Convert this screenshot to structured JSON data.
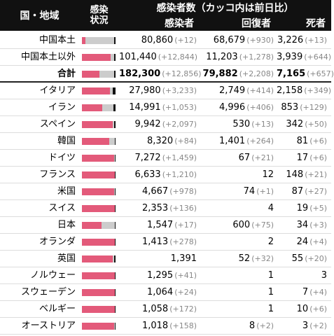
{
  "header": {
    "region": "国・地域",
    "status": [
      "感染",
      "状況"
    ],
    "group": "感染者数（カッコ内は前日比）",
    "columns": [
      "感染者",
      "回復者",
      "死者"
    ]
  },
  "rows": [
    [
      "中国本土",
      "80,860",
      "(+12)",
      "68,679",
      "(+930)",
      "3,226",
      "(+13)"
    ],
    [
      "中国本土以外",
      "101,440",
      "(+12,844)",
      "11,203",
      "(+1,278)",
      "3,939",
      "(+644)"
    ],
    [
      "合計",
      "182,300",
      "(+12,856)",
      "79,882",
      "(+2,208)",
      "7,165",
      "(+657)"
    ],
    [
      "イタリア",
      "27,980",
      "(+3,233)",
      "2,749",
      "(+414)",
      "2,158",
      "(+349)"
    ],
    [
      "イラン",
      "14,991",
      "(+1,053)",
      "4,996",
      "(+406)",
      "853",
      "(+129)"
    ],
    [
      "スペイン",
      "9,942",
      "(+2,097)",
      "530",
      "(+13)",
      "342",
      "(+50)"
    ],
    [
      "韓国",
      "8,320",
      "(+84)",
      "1,401",
      "(+264)",
      "81",
      "(+6)"
    ],
    [
      "ドイツ",
      "7,272",
      "(+1,459)",
      "67",
      "(+21)",
      "17",
      "(+6)"
    ],
    [
      "フランス",
      "6,633",
      "(+1,210)",
      "12",
      null,
      "148",
      "(+21)"
    ],
    [
      "米国",
      "4,667",
      "(+978)",
      "74",
      "(+1)",
      "87",
      "(+27)"
    ],
    [
      "スイス",
      "2,353",
      "(+136)",
      "4",
      null,
      "19",
      "(+5)"
    ],
    [
      "日本",
      "1,547",
      "(+17)",
      "600",
      "(+75)",
      "34",
      "(+3)"
    ],
    [
      "オランダ",
      "1,413",
      "(+278)",
      "2",
      null,
      "24",
      "(+4)"
    ],
    [
      "英国",
      "1,391",
      null,
      "52",
      "(+32)",
      "55",
      "(+20)"
    ],
    [
      "ノルウェー",
      "1,295",
      "(+41)",
      "1",
      null,
      "3",
      null
    ],
    [
      "スウェーデン",
      "1,064",
      "(+24)",
      "1",
      null,
      "7",
      "(+4)"
    ],
    [
      "ベルギー",
      "1,058",
      "(+172)",
      "1",
      null,
      "10",
      "(+6)"
    ],
    [
      "オーストリア",
      "1,018",
      "(+158)",
      "8",
      "(+2)",
      "3",
      "(+2)"
    ]
  ]
}
